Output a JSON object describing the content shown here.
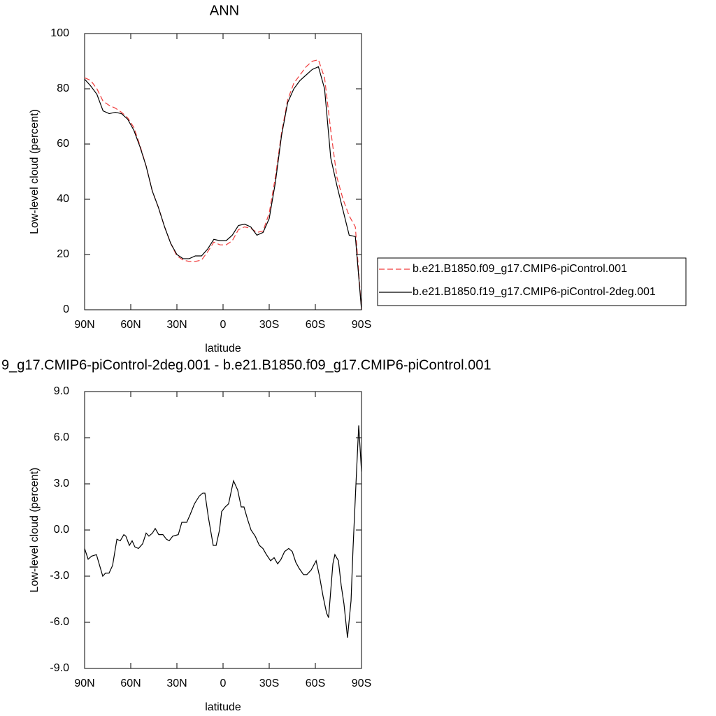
{
  "chart_data": [
    {
      "type": "line",
      "title": "ANN",
      "xlabel": "latitude",
      "ylabel": "Low-level cloud (percent)",
      "xlim": [
        90,
        -90
      ],
      "xticks": [
        {
          "value": 90,
          "label": "90N"
        },
        {
          "value": 60,
          "label": "60N"
        },
        {
          "value": 30,
          "label": "30N"
        },
        0,
        {
          "value": -30,
          "label": "30S"
        },
        {
          "value": -60,
          "label": "60S"
        },
        {
          "value": -90,
          "label": "90S"
        }
      ],
      "ylim": [
        0,
        100
      ],
      "yticks": [
        0,
        20,
        40,
        60,
        80,
        100
      ],
      "x": [
        90,
        86,
        82,
        78,
        74,
        70,
        66,
        62,
        58,
        54,
        50,
        46,
        42,
        38,
        34,
        30,
        26,
        22,
        18,
        14,
        10,
        6,
        2,
        -2,
        -6,
        -10,
        -14,
        -18,
        -22,
        -26,
        -30,
        -34,
        -38,
        -42,
        -46,
        -50,
        -54,
        -58,
        -62,
        -66,
        -70,
        -74,
        -78,
        -82,
        -86,
        -90
      ],
      "series": [
        {
          "name": "b.e21.B1850.f09_g17.CMIP6-piControl.001",
          "color": "#f03c3c",
          "dashed": true,
          "values": [
            84,
            83,
            80,
            75.5,
            74,
            73,
            71.5,
            69.5,
            66,
            59.5,
            52,
            43,
            37,
            30,
            24,
            19.5,
            18,
            17.5,
            17.5,
            18,
            21,
            24.5,
            23.5,
            23.5,
            25,
            29,
            30,
            29.5,
            28,
            28.5,
            35,
            48,
            64,
            76,
            82,
            85,
            88,
            90,
            90.5,
            84,
            65,
            48,
            40,
            34,
            30,
            0
          ]
        },
        {
          "name": "b.e21.B1850.f19_g17.CMIP6-piControl-2deg.001",
          "color": "#000000",
          "dashed": false,
          "values": [
            83.5,
            81,
            78,
            72,
            71,
            71.5,
            71,
            69,
            65,
            59,
            52,
            43,
            37,
            30,
            24,
            20,
            18.5,
            18.5,
            19.5,
            19.5,
            22,
            25.5,
            25,
            25,
            27,
            30.5,
            31,
            30,
            27,
            28,
            33,
            46,
            63,
            75,
            80,
            83,
            85,
            87,
            88,
            80,
            55,
            45,
            36,
            27,
            26.5,
            0
          ]
        }
      ]
    },
    {
      "type": "line",
      "title": "9_g17.CMIP6-piControl-2deg.001 - b.e21.B1850.f09_g17.CMIP6-piControl.001",
      "xlabel": "latitude",
      "ylabel": "Low-level cloud (percent)",
      "xlim": [
        90,
        -90
      ],
      "xticks": [
        {
          "value": 90,
          "label": "90N"
        },
        {
          "value": 60,
          "label": "60N"
        },
        {
          "value": 30,
          "label": "30N"
        },
        0,
        {
          "value": -30,
          "label": "30S"
        },
        {
          "value": -60,
          "label": "60S"
        },
        {
          "value": -90,
          "label": "90S"
        }
      ],
      "ylim": [
        -9,
        9
      ],
      "yticks": [
        {
          "value": -9,
          "label": "-9.0"
        },
        {
          "value": -6,
          "label": "-6.0"
        },
        {
          "value": -3,
          "label": "-3.0"
        },
        {
          "value": 0,
          "label": "0.0"
        },
        {
          "value": 3,
          "label": "3.0"
        },
        {
          "value": 6,
          "label": "6.0"
        },
        {
          "value": 9,
          "label": "9.0"
        }
      ],
      "x": [
        90,
        87.7,
        85.5,
        82.3,
        78.2,
        76.4,
        74.1,
        71.8,
        69,
        66.8,
        64.5,
        63.2,
        60.9,
        59.1,
        57.3,
        55,
        52.3,
        50,
        48.2,
        45.9,
        44.1,
        41.8,
        39.1,
        36.8,
        35,
        32.7,
        29.1,
        26.8,
        23.6,
        21.4,
        18.6,
        15.5,
        13.2,
        11.8,
        9.5,
        6.4,
        4.5,
        2.3,
        0.9,
        -1.4,
        -3.6,
        -5.5,
        -6.8,
        -9.5,
        -11.8,
        -13.6,
        -15.9,
        -18.2,
        -20.9,
        -23.6,
        -25.9,
        -28.2,
        -30.9,
        -33.2,
        -35.5,
        -37.7,
        -40,
        -42.7,
        -45,
        -47.3,
        -49.5,
        -52.3,
        -54.5,
        -57.3,
        -60.5,
        -62.7,
        -65,
        -67.3,
        -68.6,
        -71.4,
        -72.7,
        -75,
        -76.8,
        -78.6,
        -80.9,
        -83.2,
        -84.5,
        -86.4,
        -88.2,
        -90
      ],
      "series": [
        {
          "color": "#000000",
          "dashed": false,
          "values": [
            -1.2,
            -1.9,
            -1.7,
            -1.6,
            -3.0,
            -2.8,
            -2.8,
            -2.3,
            -0.6,
            -0.7,
            -0.3,
            -0.4,
            -1.0,
            -0.7,
            -1.1,
            -1.2,
            -0.9,
            -0.2,
            -0.4,
            -0.2,
            0.1,
            -0.3,
            -0.3,
            -0.6,
            -0.7,
            -0.4,
            -0.3,
            0.5,
            0.5,
            1.0,
            1.7,
            2.2,
            2.4,
            2.4,
            0.8,
            -1.0,
            -1.0,
            0.0,
            1.2,
            1.5,
            1.7,
            2.6,
            3.2,
            2.6,
            1.5,
            1.5,
            0.7,
            0.0,
            -0.4,
            -1.0,
            -1.2,
            -1.6,
            -2.0,
            -1.8,
            -2.2,
            -1.9,
            -1.4,
            -1.2,
            -1.4,
            -2.1,
            -2.5,
            -2.9,
            -2.9,
            -2.6,
            -2.0,
            -3.0,
            -4.3,
            -5.4,
            -5.7,
            -2.2,
            -1.6,
            -2.0,
            -3.6,
            -4.8,
            -7.0,
            -4.6,
            -1.2,
            3.0,
            6.8,
            3.8
          ]
        }
      ]
    }
  ]
}
